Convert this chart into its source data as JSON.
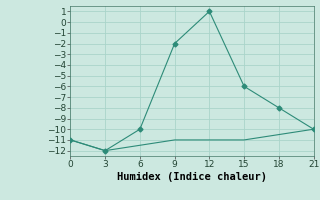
{
  "xlabel": "Humidex (Indice chaleur)",
  "line1_x": [
    0,
    3,
    6,
    9,
    12,
    15,
    18,
    21
  ],
  "line1_y": [
    -11,
    -12,
    -10,
    -2,
    1,
    -6,
    -8,
    -10
  ],
  "line2_x": [
    0,
    3,
    6,
    9,
    12,
    15,
    18,
    21
  ],
  "line2_y": [
    -11,
    -12,
    -11.5,
    -11,
    -11,
    -11,
    -10.5,
    -10
  ],
  "line_color": "#2d8b78",
  "bg_color": "#cce8e0",
  "grid_color": "#aad4ca",
  "xlim": [
    0,
    21
  ],
  "ylim": [
    -12.5,
    1.5
  ],
  "xticks": [
    0,
    3,
    6,
    9,
    12,
    15,
    18,
    21
  ],
  "yticks": [
    1,
    0,
    -1,
    -2,
    -3,
    -4,
    -5,
    -6,
    -7,
    -8,
    -9,
    -10,
    -11,
    -12
  ],
  "marker": "D",
  "markersize": 2.5,
  "linewidth": 0.8,
  "tick_fontsize": 6.5,
  "xlabel_fontsize": 7.5
}
